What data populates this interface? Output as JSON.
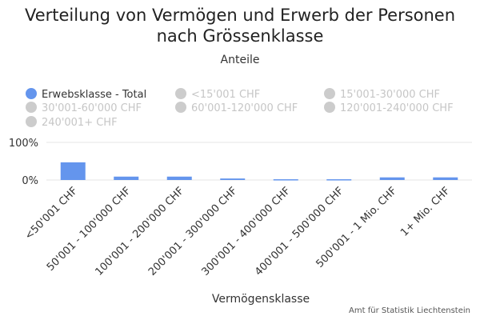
{
  "chart_data": {
    "type": "bar",
    "title": "Verteilung von Vermögen und Erwerb der Personen nach Grössenklasse",
    "subtitle": "Anteile",
    "xlabel": "Vermögensklasse",
    "ylabel": "",
    "categories": [
      "<50'001 CHF",
      "50'001 - 100'000 CHF",
      "100'001 - 200'000 CHF",
      "200'001 - 300'000 CHF",
      "300'001 - 400'000 CHF",
      "400'001 - 500'000 CHF",
      "500'001 - 1 Mio. CHF",
      "1+ Mio. CHF"
    ],
    "series": [
      {
        "name": "Erwebsklasse - Total",
        "values": [
          47,
          9,
          9,
          4,
          2,
          2,
          7,
          7
        ],
        "visible": true,
        "color": "#6495ed"
      },
      {
        "name": "<15'001 CHF",
        "visible": false
      },
      {
        "name": "15'001-30'000 CHF",
        "visible": false
      },
      {
        "name": "30'001-60'000 CHF",
        "visible": false
      },
      {
        "name": "60'001-120'000 CHF",
        "visible": false
      },
      {
        "name": "120'001-240'000 CHF",
        "visible": false
      },
      {
        "name": "240'001+ CHF",
        "visible": false
      }
    ],
    "yticks": [
      "0%",
      "100%"
    ],
    "ylim": [
      0,
      100
    ],
    "grid": true,
    "legend": "top"
  },
  "credit": "Amt für Statistik Liechtenstein",
  "colors": {
    "bar": "#6495ed",
    "inactive": "#cccccc",
    "grid": "#e6e6e6"
  }
}
